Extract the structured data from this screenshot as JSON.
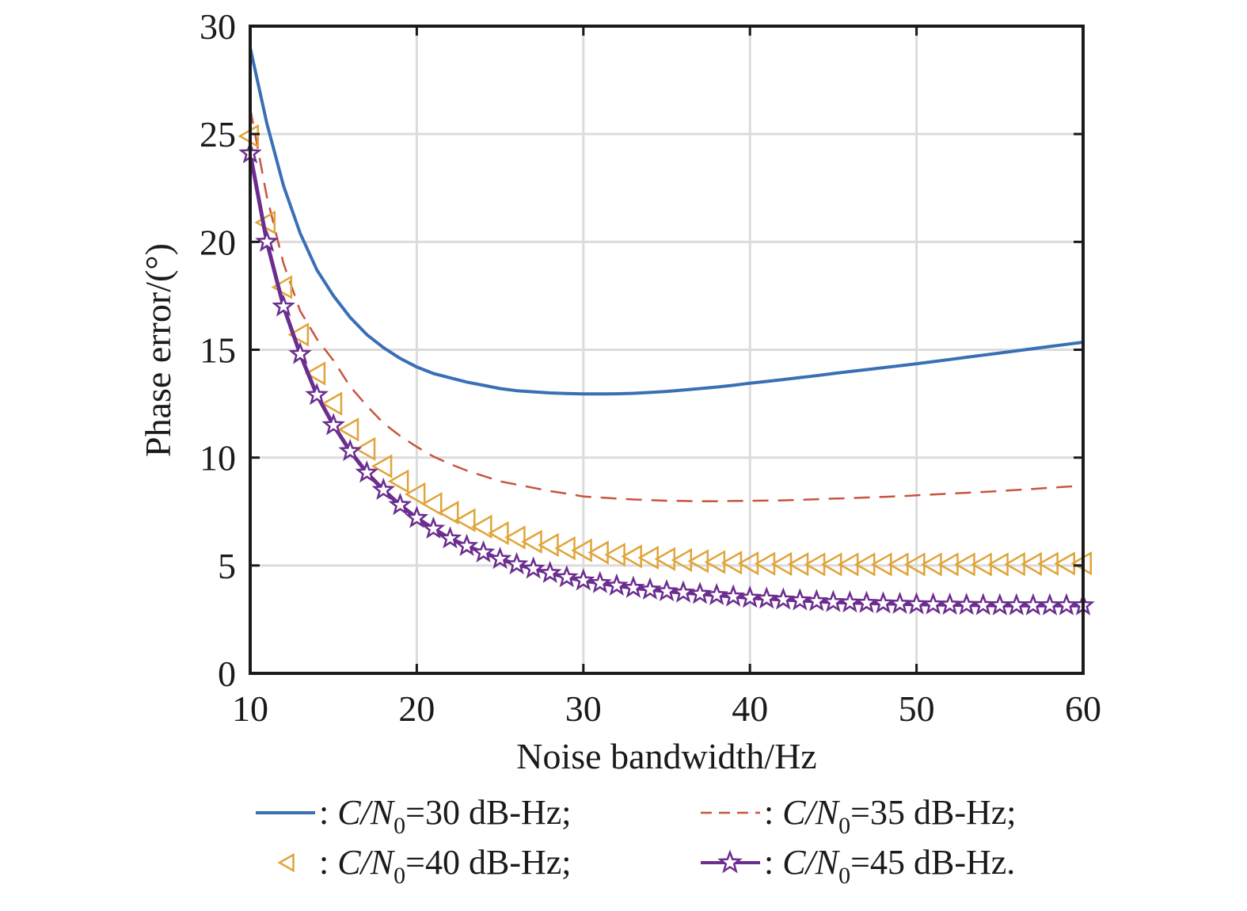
{
  "chart_data": {
    "type": "line",
    "title": "",
    "xlabel": "Noise bandwidth/Hz",
    "ylabel": "Phase error/(°)",
    "xlim": [
      10,
      60
    ],
    "ylim": [
      0,
      30
    ],
    "xticks": [
      10,
      20,
      30,
      40,
      50,
      60
    ],
    "yticks": [
      0,
      5,
      10,
      15,
      20,
      25,
      30
    ],
    "xtick_labels": [
      "10",
      "20",
      "30",
      "40",
      "50",
      "60"
    ],
    "ytick_labels": [
      "0",
      "5",
      "10",
      "15",
      "20",
      "25",
      "30"
    ],
    "grid": true,
    "legend_position": "bottom",
    "x": [
      10,
      11,
      12,
      13,
      14,
      15,
      16,
      17,
      18,
      19,
      20,
      21,
      22,
      23,
      24,
      25,
      26,
      27,
      28,
      29,
      30,
      31,
      32,
      33,
      34,
      35,
      36,
      37,
      38,
      39,
      40,
      41,
      42,
      43,
      44,
      45,
      46,
      47,
      48,
      49,
      50,
      51,
      52,
      53,
      54,
      55,
      56,
      57,
      58,
      59,
      60
    ],
    "series": [
      {
        "name": "C/N0=30 dB-Hz",
        "legend_prefix": ": ",
        "legend_main": "C/N",
        "legend_sub": "0",
        "legend_suffix": "=30 dB-Hz;",
        "color": "#3a6fb5",
        "style": "solid",
        "marker": "none",
        "values": [
          29.0,
          25.5,
          22.6,
          20.4,
          18.7,
          17.5,
          16.5,
          15.7,
          15.1,
          14.6,
          14.2,
          13.9,
          13.7,
          13.5,
          13.35,
          13.2,
          13.1,
          13.05,
          13.0,
          12.97,
          12.95,
          12.95,
          12.96,
          12.98,
          13.02,
          13.07,
          13.13,
          13.2,
          13.27,
          13.35,
          13.45,
          13.53,
          13.62,
          13.71,
          13.8,
          13.9,
          13.99,
          14.08,
          14.17,
          14.26,
          14.35,
          14.45,
          14.55,
          14.65,
          14.75,
          14.85,
          14.95,
          15.05,
          15.15,
          15.25,
          15.35
        ]
      },
      {
        "name": "C/N0=35 dB-Hz",
        "legend_prefix": ": ",
        "legend_main": "C/N",
        "legend_sub": "0",
        "legend_suffix": "=35 dB-Hz;",
        "color": "#c8553d",
        "style": "dashed",
        "marker": "none",
        "values": [
          26.2,
          22.1,
          19.0,
          16.8,
          15.5,
          14.5,
          13.3,
          12.4,
          11.6,
          11.0,
          10.5,
          10.05,
          9.7,
          9.4,
          9.15,
          8.9,
          8.75,
          8.6,
          8.45,
          8.33,
          8.2,
          8.15,
          8.1,
          8.06,
          8.03,
          8.0,
          7.99,
          7.98,
          7.98,
          7.99,
          8.0,
          8.01,
          8.02,
          8.04,
          8.07,
          8.1,
          8.12,
          8.15,
          8.18,
          8.21,
          8.25,
          8.29,
          8.33,
          8.37,
          8.41,
          8.45,
          8.5,
          8.55,
          8.6,
          8.65,
          8.7
        ]
      },
      {
        "name": "C/N0=40 dB-Hz",
        "legend_prefix": ": ",
        "legend_main": "C/N",
        "legend_sub": "0",
        "legend_suffix": "=40 dB-Hz;",
        "color": "#e0a43a",
        "style": "none",
        "marker": "triangle-left",
        "values": [
          24.9,
          20.9,
          17.9,
          15.7,
          13.9,
          12.5,
          11.3,
          10.4,
          9.6,
          8.9,
          8.3,
          7.85,
          7.45,
          7.1,
          6.8,
          6.5,
          6.3,
          6.1,
          5.95,
          5.8,
          5.7,
          5.6,
          5.5,
          5.42,
          5.36,
          5.3,
          5.25,
          5.2,
          5.16,
          5.13,
          5.1,
          5.08,
          5.07,
          5.06,
          5.05,
          5.05,
          5.05,
          5.05,
          5.05,
          5.05,
          5.05,
          5.05,
          5.05,
          5.05,
          5.05,
          5.05,
          5.06,
          5.07,
          5.08,
          5.09,
          5.1
        ]
      },
      {
        "name": "C/N0=45 dB-Hz",
        "legend_prefix": ": ",
        "legend_main": "C/N",
        "legend_sub": "0",
        "legend_suffix": "=45 dB-Hz.",
        "color": "#6b2d8f",
        "style": "solid",
        "marker": "star",
        "values": [
          24.1,
          20.0,
          17.0,
          14.8,
          12.9,
          11.5,
          10.3,
          9.3,
          8.5,
          7.8,
          7.2,
          6.7,
          6.25,
          5.9,
          5.6,
          5.3,
          5.05,
          4.85,
          4.65,
          4.45,
          4.3,
          4.18,
          4.06,
          3.96,
          3.88,
          3.8,
          3.74,
          3.68,
          3.62,
          3.56,
          3.5,
          3.46,
          3.42,
          3.38,
          3.34,
          3.3,
          3.28,
          3.26,
          3.24,
          3.22,
          3.2,
          3.19,
          3.18,
          3.17,
          3.16,
          3.15,
          3.15,
          3.15,
          3.15,
          3.15,
          3.15
        ]
      }
    ]
  }
}
